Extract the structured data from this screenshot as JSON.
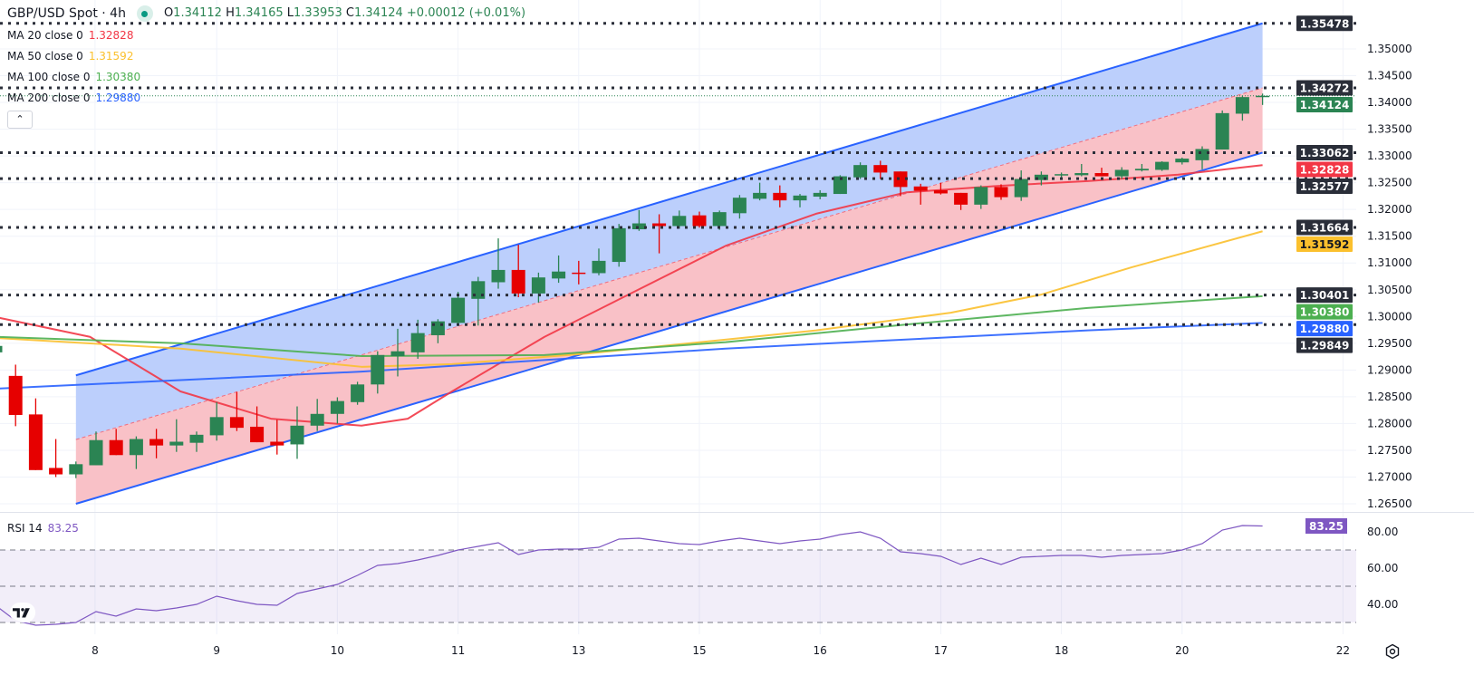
{
  "header": {
    "symbol": "GBP/USD Spot · 4h",
    "ohlc": {
      "o_label": "O",
      "o": "1.34112",
      "h_label": "H",
      "h": "1.34165",
      "l_label": "L",
      "l": "1.33953",
      "c_label": "C",
      "c": "1.34124",
      "change": "+0.00012 (+0.01%)"
    },
    "collapse_icon": "chevron-up-icon"
  },
  "indicators": [
    {
      "label": "MA 20 close 0",
      "value": "1.32828",
      "color": "#f23645"
    },
    {
      "label": "MA 50 close 0",
      "value": "1.31592",
      "color": "#fbc02d"
    },
    {
      "label": "MA 100 close 0",
      "value": "1.30380",
      "color": "#4caf50"
    },
    {
      "label": "MA 200 close 0",
      "value": "1.29880",
      "color": "#2962ff"
    }
  ],
  "rsi": {
    "label": "RSI 14",
    "value": "83.25",
    "color": "#7e57c2"
  },
  "colors": {
    "up": "#2b8453",
    "down": "#e60000",
    "level": "#2a2e39",
    "channel_line": "#2962ff",
    "channel_upper_fill": "#bccffc",
    "channel_lower_fill": "#f9c1c7"
  },
  "chart_data": {
    "type": "candlestick",
    "title": "",
    "candles": [
      [
        1.2933,
        1.2947,
        1.2932,
        1.2945
      ],
      [
        1.2889,
        1.291,
        1.2795,
        1.2816
      ],
      [
        1.2817,
        1.2847,
        1.2713,
        1.2713
      ],
      [
        1.2717,
        1.2771,
        1.27,
        1.2705
      ],
      [
        1.2705,
        1.2729,
        1.2698,
        1.2724
      ],
      [
        1.2722,
        1.2785,
        1.2722,
        1.2769
      ],
      [
        1.2769,
        1.279,
        1.2741,
        1.2741
      ],
      [
        1.2741,
        1.2776,
        1.2715,
        1.2771
      ],
      [
        1.2771,
        1.279,
        1.2735,
        1.2759
      ],
      [
        1.2759,
        1.2808,
        1.2747,
        1.2766
      ],
      [
        1.2764,
        1.2785,
        1.2747,
        1.2779
      ],
      [
        1.2778,
        1.284,
        1.2768,
        1.2812
      ],
      [
        1.2812,
        1.2859,
        1.2786,
        1.2792
      ],
      [
        1.2794,
        1.2832,
        1.2765,
        1.2765
      ],
      [
        1.2766,
        1.2807,
        1.2742,
        1.2759
      ],
      [
        1.2761,
        1.2832,
        1.2734,
        1.2796
      ],
      [
        1.2796,
        1.2846,
        1.2786,
        1.2818
      ],
      [
        1.2818,
        1.2849,
        1.28,
        1.2842
      ],
      [
        1.284,
        1.2878,
        1.2835,
        1.2873
      ],
      [
        1.2873,
        1.2935,
        1.2856,
        1.2928
      ],
      [
        1.2926,
        1.2977,
        1.2888,
        1.2935
      ],
      [
        1.2933,
        1.2994,
        1.2921,
        1.2969
      ],
      [
        1.2965,
        1.2995,
        1.295,
        1.2991
      ],
      [
        1.2988,
        1.3046,
        1.2985,
        1.3035
      ],
      [
        1.3033,
        1.3074,
        1.2983,
        1.3066
      ],
      [
        1.3064,
        1.3146,
        1.3052,
        1.3087
      ],
      [
        1.3087,
        1.3134,
        1.3036,
        1.3043
      ],
      [
        1.3043,
        1.3082,
        1.3026,
        1.3073
      ],
      [
        1.3071,
        1.3114,
        1.3063,
        1.3084
      ],
      [
        1.3082,
        1.3104,
        1.306,
        1.3081
      ],
      [
        1.3081,
        1.3127,
        1.3077,
        1.3104
      ],
      [
        1.3102,
        1.3173,
        1.3093,
        1.3165
      ],
      [
        1.3163,
        1.3199,
        1.316,
        1.3174
      ],
      [
        1.3174,
        1.3191,
        1.3118,
        1.3169
      ],
      [
        1.3169,
        1.3198,
        1.3164,
        1.3188
      ],
      [
        1.3189,
        1.3196,
        1.3166,
        1.3169
      ],
      [
        1.3169,
        1.3198,
        1.3162,
        1.3195
      ],
      [
        1.3193,
        1.3227,
        1.3183,
        1.3222
      ],
      [
        1.322,
        1.325,
        1.3217,
        1.3231
      ],
      [
        1.3231,
        1.3245,
        1.3204,
        1.3217
      ],
      [
        1.3217,
        1.3229,
        1.3204,
        1.3226
      ],
      [
        1.3224,
        1.3236,
        1.3219,
        1.3231
      ],
      [
        1.3229,
        1.3264,
        1.3229,
        1.3262
      ],
      [
        1.326,
        1.3288,
        1.3257,
        1.3283
      ],
      [
        1.3283,
        1.3291,
        1.3257,
        1.3269
      ],
      [
        1.3271,
        1.3271,
        1.3225,
        1.3242
      ],
      [
        1.3243,
        1.3248,
        1.3209,
        1.3235
      ],
      [
        1.3236,
        1.325,
        1.3228,
        1.323
      ],
      [
        1.3231,
        1.3231,
        1.3199,
        1.3209
      ],
      [
        1.3209,
        1.3245,
        1.3201,
        1.3242
      ],
      [
        1.3242,
        1.3247,
        1.3218,
        1.3223
      ],
      [
        1.3223,
        1.3273,
        1.3216,
        1.3257
      ],
      [
        1.3255,
        1.3271,
        1.3245,
        1.3265
      ],
      [
        1.3264,
        1.3269,
        1.3259,
        1.3266
      ],
      [
        1.3264,
        1.3285,
        1.3262,
        1.3268
      ],
      [
        1.3268,
        1.3278,
        1.3262,
        1.3262
      ],
      [
        1.3262,
        1.3279,
        1.3257,
        1.3274
      ],
      [
        1.3273,
        1.3285,
        1.3271,
        1.3276
      ],
      [
        1.3274,
        1.329,
        1.3272,
        1.3289
      ],
      [
        1.3288,
        1.3297,
        1.3284,
        1.3295
      ],
      [
        1.3292,
        1.3318,
        1.3275,
        1.3313
      ],
      [
        1.3312,
        1.3385,
        1.3312,
        1.338
      ],
      [
        1.3379,
        1.3413,
        1.3366,
        1.341
      ],
      [
        1.34112,
        1.34165,
        1.33953,
        1.34124
      ]
    ],
    "candle_format": [
      "open",
      "high",
      "low",
      "close"
    ],
    "ylim": [
      1.263,
      1.357
    ],
    "price_ticks": [
      "1.35000",
      "1.34500",
      "1.34000",
      "1.33500",
      "1.33000",
      "1.32500",
      "1.32000",
      "1.31500",
      "1.31000",
      "1.30500",
      "1.30000",
      "1.29500",
      "1.29000",
      "1.28500",
      "1.28000",
      "1.27500",
      "1.27000",
      "1.26500"
    ],
    "time_ticks": [
      "8",
      "9",
      "10",
      "11",
      "13",
      "15",
      "16",
      "17",
      "18",
      "20",
      "22"
    ],
    "grid": true,
    "current_price": 1.34124,
    "levels": [
      1.35478,
      1.34272,
      1.33062,
      1.32577,
      1.31664,
      1.30401,
      1.29849
    ],
    "channel": {
      "upper": [
        1.289,
        1.35478
      ],
      "middle": [
        1.277,
        1.34272
      ],
      "lower": [
        1.265,
        1.33062
      ]
    },
    "moving_averages": [
      {
        "name": "MA 20",
        "color": "#f23645",
        "points": [
          [
            0,
            1.2999
          ],
          [
            4.7,
            1.2962
          ],
          [
            9.2,
            1.286
          ],
          [
            13.7,
            1.2809
          ],
          [
            18.2,
            1.2796
          ],
          [
            20.5,
            1.2809
          ],
          [
            22.7,
            1.286
          ],
          [
            27.3,
            1.2962
          ],
          [
            31.8,
            1.3047
          ],
          [
            36.3,
            1.3132
          ],
          [
            40.8,
            1.3192
          ],
          [
            45.3,
            1.3232
          ],
          [
            49.8,
            1.3244
          ],
          [
            54.3,
            1.3253
          ],
          [
            58.8,
            1.3265
          ],
          [
            63,
            1.32828
          ]
        ]
      },
      {
        "name": "MA 50",
        "color": "#fbc02d",
        "points": [
          [
            0,
            1.296
          ],
          [
            9.2,
            1.294
          ],
          [
            18.2,
            1.2906
          ],
          [
            22.7,
            1.2911
          ],
          [
            29.5,
            1.2931
          ],
          [
            40.8,
            1.2974
          ],
          [
            47.5,
            1.3007
          ],
          [
            52,
            1.3041
          ],
          [
            56.5,
            1.3092
          ],
          [
            63,
            1.31592
          ]
        ]
      },
      {
        "name": "MA 100",
        "color": "#4caf50",
        "points": [
          [
            0,
            1.2962
          ],
          [
            9.2,
            1.295
          ],
          [
            18.2,
            1.2926
          ],
          [
            27.3,
            1.2928
          ],
          [
            36.3,
            1.2952
          ],
          [
            45.3,
            1.2985
          ],
          [
            54.3,
            1.3016
          ],
          [
            63,
            1.3038
          ]
        ]
      },
      {
        "name": "MA 200",
        "color": "#2962ff",
        "points": [
          [
            0,
            1.2865
          ],
          [
            18.2,
            1.2897
          ],
          [
            36.3,
            1.294
          ],
          [
            54.3,
            1.2974
          ],
          [
            63,
            1.2988
          ]
        ]
      }
    ],
    "rsi": {
      "period": 14,
      "ylim": [
        25,
        90
      ],
      "ticks": [
        "80.00",
        "60.00",
        "40.00"
      ],
      "bands": [
        70,
        50,
        30
      ],
      "values": [
        39.5,
        31,
        28.5,
        29,
        30,
        36,
        33.5,
        37.5,
        36.5,
        38,
        40,
        44.5,
        42,
        40,
        39.5,
        46,
        48.5,
        51,
        56,
        61.5,
        62.5,
        64.5,
        67,
        70,
        72,
        74,
        67.5,
        70,
        70.5,
        70.5,
        71.5,
        76,
        76.5,
        75,
        73.5,
        73,
        75,
        76.5,
        75,
        73.5,
        75,
        76,
        78.5,
        80,
        76.5,
        69,
        68,
        66.5,
        62,
        65.5,
        62,
        66,
        66.5,
        67,
        67,
        66,
        67,
        67.5,
        68,
        70,
        73.5,
        81,
        83.5,
        83.25
      ]
    }
  }
}
